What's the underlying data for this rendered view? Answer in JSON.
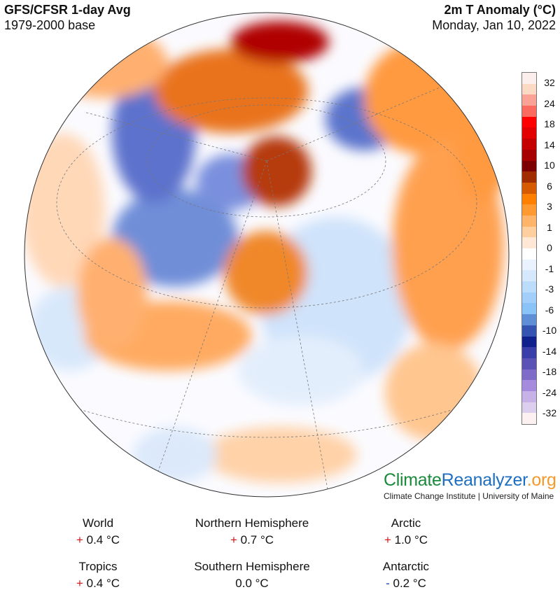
{
  "header": {
    "title": "GFS/CFSR 1-day Avg",
    "baseline": "1979-2000 base",
    "variable": "2m T Anomaly (°C)",
    "date": "Monday, Jan 10, 2022"
  },
  "map": {
    "projection": "orthographic",
    "view": "North Atlantic / North America / Europe / Africa"
  },
  "legend": {
    "ticks": [
      "32",
      "24",
      "18",
      "14",
      "10",
      "6",
      "3",
      "1",
      "0",
      "-1",
      "-3",
      "-6",
      "-10",
      "-14",
      "-18",
      "-24",
      "-32"
    ],
    "colors": [
      "#fdeeee",
      "#fbd9c2",
      "#fba297",
      "#fb6a5e",
      "#fe0000",
      "#e30000",
      "#c40000",
      "#a70000",
      "#7d0000",
      "#a02c00",
      "#d65a00",
      "#ff8000",
      "#ff9a32",
      "#ffb46a",
      "#ffcfa0",
      "#ffe8d6",
      "#ffffff",
      "#eaf2ff",
      "#d5e8fc",
      "#bbdcfb",
      "#a2cffa",
      "#8ac3f7",
      "#5d8ed6",
      "#3554b2",
      "#10208c",
      "#3a3ea8",
      "#5a52b4",
      "#7f6cc8",
      "#a68ade",
      "#c7b2e8",
      "#dccfee",
      "#fdf0f0"
    ]
  },
  "branding": {
    "logo_part1": "Climate",
    "logo_part2": "Reanalyzer",
    "logo_part3": ".org",
    "institution": "Climate Change Institute | University of Maine",
    "colors": {
      "climate": "#1a8a3c",
      "reanalyzer": "#1f6fc0",
      "org": "#f29b2c"
    }
  },
  "stats": [
    {
      "label": "World",
      "sign": "+",
      "value": "0.4 °C"
    },
    {
      "label": "Northern Hemisphere",
      "sign": "+",
      "value": "0.7 °C"
    },
    {
      "label": "Arctic",
      "sign": "+",
      "value": "1.0 °C"
    },
    {
      "label": "Tropics",
      "sign": "+",
      "value": "0.4 °C"
    },
    {
      "label": "Southern Hemisphere",
      "sign": "",
      "value": "0.0 °C"
    },
    {
      "label": "Antarctic",
      "sign": "-",
      "value": "0.2 °C"
    }
  ]
}
